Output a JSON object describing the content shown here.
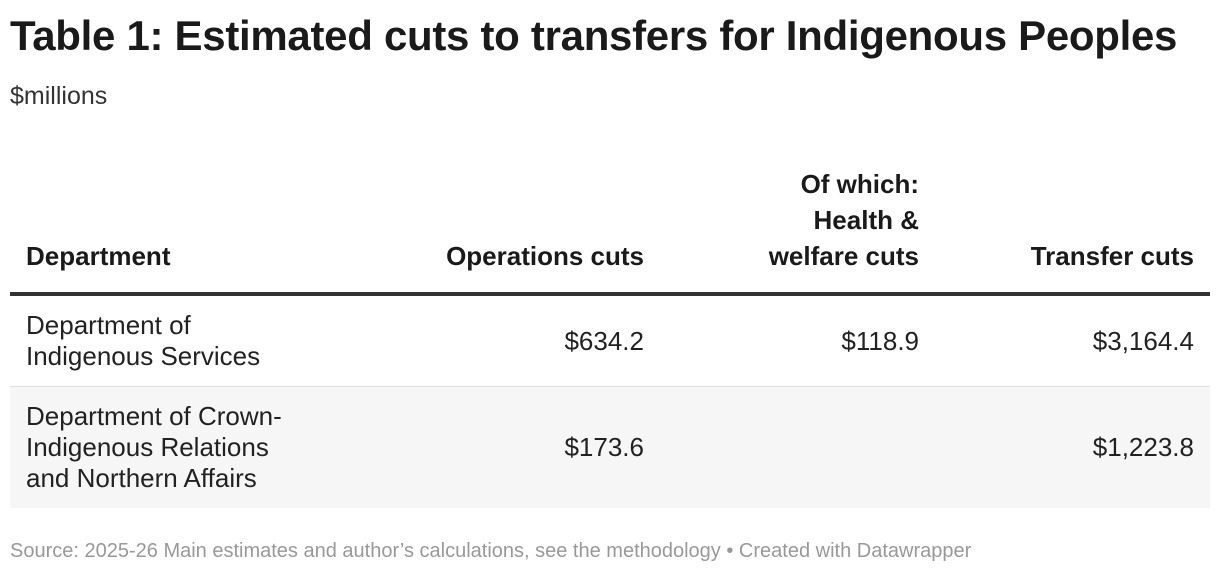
{
  "title": "Table 1: Estimated cuts to transfers for Indigenous Peoples",
  "subtitle": "$millions",
  "table": {
    "headers": {
      "department": "Department",
      "operations": "Operations cuts",
      "health_welfare_line1": "Of which:",
      "health_welfare_line2": "Health &",
      "health_welfare_line3": "welfare cuts",
      "transfer": "Transfer cuts"
    },
    "rows": [
      {
        "department_line1": "Department of",
        "department_line2": "Indigenous Services",
        "department_line3": "",
        "operations": "$634.2",
        "health_welfare": "$118.9",
        "transfer": "$3,164.4"
      },
      {
        "department_line1": "Department of Crown-",
        "department_line2": "Indigenous Relations",
        "department_line3": "and Northern Affairs",
        "operations": "$173.6",
        "health_welfare": "",
        "transfer": "$1,223.8"
      }
    ]
  },
  "footer": {
    "source": "Source: 2025-26 Main estimates and author’s calculations, see the methodology • Created with Datawrapper"
  }
}
